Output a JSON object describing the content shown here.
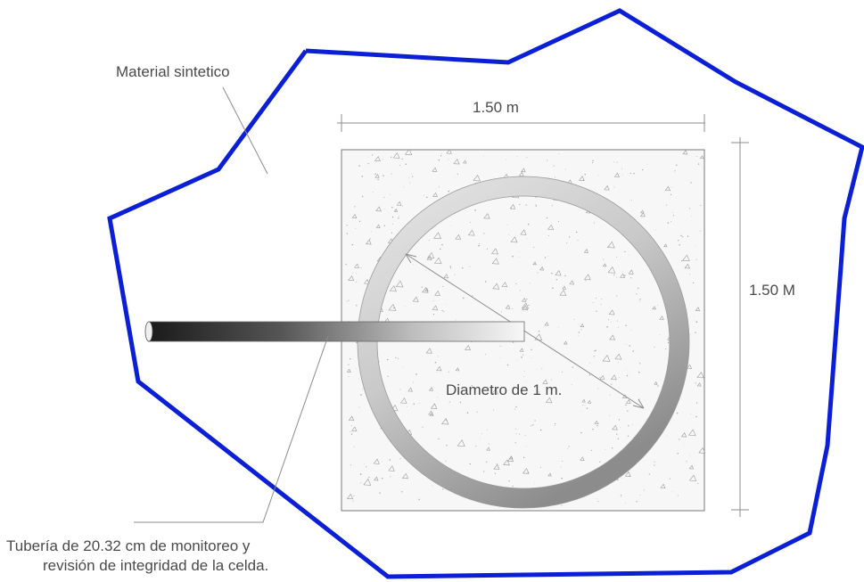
{
  "labels": {
    "material": "Material sintetico",
    "width_dim": "1.50 m",
    "height_dim": "1.50 M",
    "diameter": "Diametro de 1 m.",
    "pipe_line1": "Tubería de 20.32 cm de monitoreo y",
    "pipe_line2": "revisión de integridad de la celda."
  },
  "colors": {
    "boundary": "#0a1fd6",
    "concrete_fill": "#f6f6f6",
    "concrete_outline": "#7a7a7a",
    "ring_light": "#e2e2e2",
    "ring_dark": "#8f8f8f",
    "pipe_dark": "#1e1e1e",
    "pipe_light": "#f4f4f4",
    "dimension_lines": "#8c8c8c",
    "text": "#4a4a4a"
  }
}
